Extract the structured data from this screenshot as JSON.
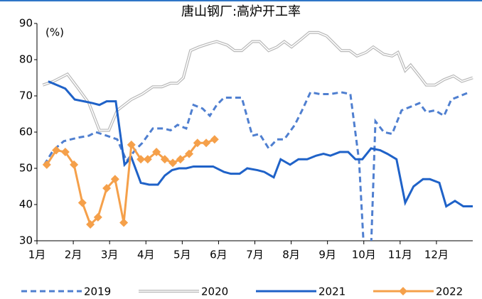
{
  "chart_data": {
    "type": "line",
    "title": "唐山钢厂:高炉开工率",
    "y_label": "(%)",
    "xlim": [
      1,
      13
    ],
    "xticks": [
      {
        "value": 1,
        "label": "1月"
      },
      {
        "value": 2,
        "label": "2月"
      },
      {
        "value": 3,
        "label": "3月"
      },
      {
        "value": 4,
        "label": "4月"
      },
      {
        "value": 5,
        "label": "5月"
      },
      {
        "value": 6,
        "label": "6月"
      },
      {
        "value": 7,
        "label": "7月"
      },
      {
        "value": 8,
        "label": "8月"
      },
      {
        "value": 9,
        "label": "9月"
      },
      {
        "value": 10,
        "label": "10月"
      },
      {
        "value": 11,
        "label": "11月"
      },
      {
        "value": 12,
        "label": "12月"
      }
    ],
    "ylim": [
      30,
      90
    ],
    "yticks": [
      30,
      40,
      50,
      60,
      70,
      80,
      90
    ],
    "grid": false,
    "legend": "bottom",
    "series": [
      {
        "name": "2019",
        "color": "#4f7fd0",
        "line_style": "dashed",
        "x": [
          1.2,
          1.45,
          1.74,
          2.14,
          2.43,
          2.62,
          2.92,
          3.21,
          3.47,
          3.7,
          3.9,
          4.19,
          4.48,
          4.68,
          4.87,
          5.11,
          5.31,
          5.56,
          5.76,
          5.95,
          6.15,
          6.44,
          6.64,
          6.93,
          7.13,
          7.38,
          7.61,
          7.81,
          8.1,
          8.3,
          8.53,
          8.79,
          9.08,
          9.38,
          9.63,
          9.87,
          10.0,
          10.2,
          10.32,
          10.55,
          10.78,
          11.04,
          11.29,
          11.53,
          11.72,
          11.96,
          12.21,
          12.41,
          12.66,
          12.9
        ],
        "values": [
          51,
          55,
          57.5,
          58.5,
          59,
          60,
          59,
          58,
          52,
          55,
          57,
          61,
          61,
          60.5,
          62,
          61,
          67.5,
          66.5,
          64.5,
          67.5,
          69.5,
          69.5,
          69.5,
          59,
          59.5,
          55.5,
          58,
          58,
          62,
          66,
          71,
          70.5,
          70.5,
          71,
          70.5,
          52,
          28,
          28,
          63,
          60,
          59.5,
          66,
          67,
          68,
          65.5,
          66,
          64.5,
          69,
          70,
          71
        ]
      },
      {
        "name": "2020",
        "color": "#b8b8b8",
        "line_style": "double",
        "x": [
          1.16,
          1.45,
          1.84,
          2.14,
          2.43,
          2.72,
          2.98,
          3.21,
          3.6,
          3.9,
          4.19,
          4.44,
          4.68,
          4.87,
          5.03,
          5.23,
          5.46,
          5.76,
          5.95,
          6.24,
          6.44,
          6.64,
          6.93,
          7.13,
          7.38,
          7.61,
          7.81,
          8.01,
          8.26,
          8.5,
          8.75,
          8.98,
          9.18,
          9.38,
          9.61,
          9.81,
          10.06,
          10.26,
          10.55,
          10.78,
          10.94,
          11.14,
          11.29,
          11.53,
          11.72,
          11.96,
          12.21,
          12.47,
          12.7,
          13.0
        ],
        "values": [
          73,
          74,
          76,
          72,
          68,
          60.5,
          60.5,
          66,
          69,
          70.5,
          72.5,
          72.5,
          73.5,
          73.5,
          75,
          82.5,
          83.5,
          84.5,
          85,
          84,
          82.5,
          82.5,
          85,
          85,
          82.5,
          83.5,
          85,
          83.5,
          85.5,
          87.5,
          87.5,
          86.5,
          84.5,
          82.5,
          82.5,
          81,
          82,
          83.5,
          81.5,
          81,
          82,
          77,
          78.5,
          75.5,
          73,
          73,
          74.5,
          75.5,
          74,
          75
        ]
      },
      {
        "name": "2021",
        "color": "#1f62c8",
        "line_style": "solid",
        "x": [
          1.31,
          1.55,
          1.78,
          2.04,
          2.29,
          2.53,
          2.72,
          2.92,
          3.17,
          3.41,
          3.6,
          3.86,
          4.09,
          4.33,
          4.52,
          4.72,
          4.91,
          5.11,
          5.31,
          5.56,
          5.85,
          6.15,
          6.34,
          6.58,
          6.79,
          7.07,
          7.26,
          7.52,
          7.71,
          7.97,
          8.2,
          8.44,
          8.69,
          8.89,
          9.08,
          9.34,
          9.57,
          9.77,
          9.96,
          10.2,
          10.45,
          10.65,
          10.9,
          11.14,
          11.37,
          11.63,
          11.82,
          12.08,
          12.27,
          12.51,
          12.74,
          13.0
        ],
        "values": [
          74,
          73,
          72,
          69,
          68.5,
          68,
          67.5,
          68.5,
          68.5,
          51,
          53,
          46,
          45.5,
          45.5,
          48,
          49.5,
          50,
          50,
          50.5,
          50.5,
          50.5,
          49,
          48.5,
          48.5,
          50,
          49.5,
          49,
          47.5,
          52.5,
          51,
          52.5,
          52.5,
          53.5,
          54,
          53.5,
          54.5,
          54.5,
          52.5,
          52.5,
          55.5,
          55,
          54,
          52.5,
          40.5,
          45,
          47,
          47,
          46,
          39.5,
          41,
          39.5,
          39.5
        ]
      },
      {
        "name": "2022",
        "color": "#f5a04a",
        "line_style": "solid",
        "marker": "diamond",
        "x": [
          1.27,
          1.53,
          1.78,
          2.02,
          2.25,
          2.47,
          2.68,
          2.92,
          3.15,
          3.39,
          3.6,
          3.86,
          4.05,
          4.29,
          4.52,
          4.74,
          4.95,
          5.19,
          5.42,
          5.66,
          5.89
        ],
        "values": [
          51,
          55,
          54.5,
          51,
          40.5,
          34.5,
          36.5,
          44.5,
          47,
          35,
          56.5,
          52.5,
          52.5,
          54.5,
          52.5,
          51.5,
          52.5,
          54,
          57,
          57,
          58
        ]
      }
    ]
  }
}
